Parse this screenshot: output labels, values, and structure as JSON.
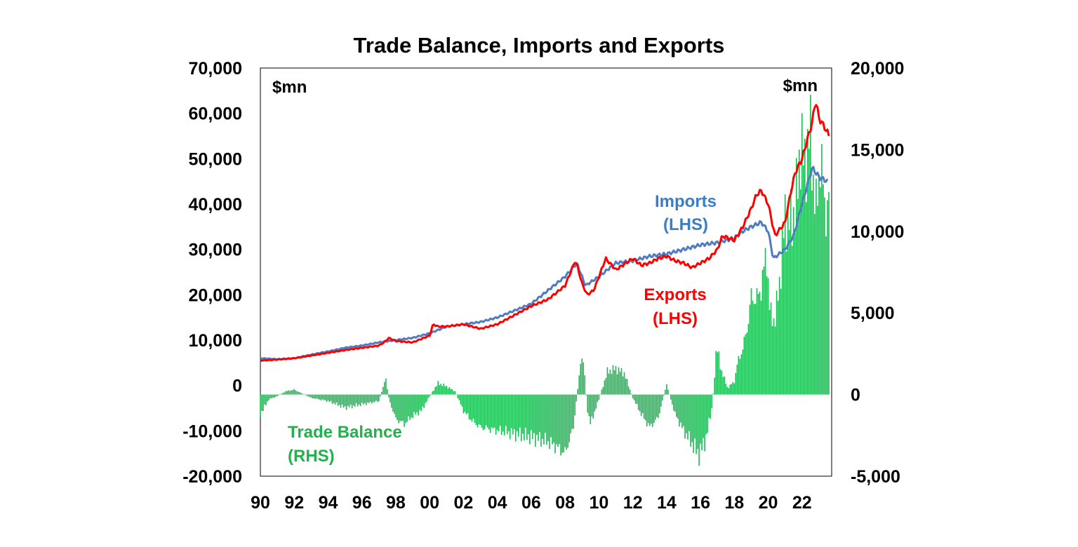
{
  "chart_data": {
    "type": "line+bar",
    "title": "Trade Balance, Imports and Exports",
    "unit_left": "$mn",
    "unit_right": "$mn",
    "x_ticks": [
      "90",
      "92",
      "94",
      "96",
      "98",
      "00",
      "02",
      "04",
      "06",
      "08",
      "10",
      "12",
      "14",
      "16",
      "18",
      "20",
      "22"
    ],
    "x_range": [
      1990,
      2023.75
    ],
    "y_left": {
      "min": -20000,
      "max": 70000,
      "ticks": [
        "-20,000",
        "-10,000",
        "0",
        "10,000",
        "20,000",
        "30,000",
        "40,000",
        "50,000",
        "60,000",
        "70,000"
      ]
    },
    "y_right": {
      "min": -5000,
      "max": 20000,
      "ticks": [
        "-5,000",
        "0",
        "5,000",
        "10,000",
        "15,000",
        "20,000"
      ]
    },
    "grid": false,
    "colors": {
      "imports": "#4f7cc0",
      "exports": "#ff0000",
      "trade_balance": "#1db954",
      "imports_label": "#3a7dc9",
      "exports_label": "#ff0000",
      "balance_label": "#22b14c"
    },
    "series": [
      {
        "name": "Imports (LHS)",
        "label_line1": "Imports",
        "label_line2": "(LHS)",
        "axis": "left",
        "kind": "line",
        "x": [
          1990,
          1991,
          1992,
          1993,
          1994,
          1995,
          1996,
          1997,
          1998,
          1999,
          2000,
          2001,
          2002,
          2003,
          2004,
          2005,
          2006,
          2007,
          2008,
          2008.7,
          2009.2,
          2010,
          2011,
          2012,
          2013,
          2014,
          2015,
          2016,
          2017,
          2018,
          2018.5,
          2019,
          2019.6,
          2020,
          2020.3,
          2021,
          2021.5,
          2022,
          2022.6,
          2023,
          2023.5
        ],
        "y": [
          6000,
          5800,
          6000,
          6800,
          7500,
          8300,
          8800,
          9500,
          10000,
          10500,
          11500,
          13000,
          13500,
          14000,
          15000,
          16500,
          18000,
          21000,
          24000,
          27000,
          22000,
          24000,
          27000,
          27500,
          28500,
          29000,
          30000,
          31000,
          31500,
          32500,
          34000,
          35000,
          36000,
          34000,
          28000,
          30000,
          33000,
          40000,
          48000,
          46000,
          45000
        ]
      },
      {
        "name": "Exports (LHS)",
        "label_line1": "Exports",
        "label_line2": "(LHS)",
        "axis": "left",
        "kind": "line",
        "x": [
          1990,
          1991,
          1992,
          1993,
          1994,
          1995,
          1996,
          1997,
          1997.3,
          1997.6,
          1998,
          1999,
          2000,
          2000.2,
          2000.5,
          2001,
          2002,
          2003,
          2004,
          2005,
          2006,
          2007,
          2008,
          2008.6,
          2008.75,
          2009,
          2009.3,
          2009.7,
          2010,
          2010.4,
          2011,
          2011.6,
          2012,
          2012.5,
          2013,
          2013.5,
          2014,
          2014.5,
          2015,
          2015.5,
          2016,
          2016.5,
          2017,
          2017.3,
          2018,
          2018.5,
          2019,
          2019.3,
          2019.6,
          2020,
          2020.4,
          2021,
          2021.3,
          2021.6,
          2022,
          2022.6,
          2022.8,
          2023,
          2023.4,
          2023.6
        ],
        "y": [
          5500,
          5700,
          6000,
          6600,
          7200,
          7800,
          8300,
          8800,
          9500,
          10500,
          9800,
          9500,
          11000,
          13500,
          13000,
          13000,
          13500,
          12500,
          13500,
          15500,
          17500,
          19000,
          22000,
          27500,
          26000,
          22500,
          20000,
          21000,
          24000,
          28000,
          25500,
          27000,
          28000,
          26500,
          27000,
          28000,
          28500,
          27500,
          27000,
          26000,
          27000,
          28000,
          30000,
          33000,
          32000,
          35000,
          39000,
          42000,
          43000,
          40000,
          33000,
          36000,
          42000,
          47000,
          50000,
          58000,
          63000,
          59000,
          56500,
          55000
        ]
      },
      {
        "name": "Trade Balance (RHS)",
        "label_line1": "Trade Balance",
        "label_line2": "(RHS)",
        "axis": "right",
        "kind": "bar",
        "x": [
          1990,
          1990.5,
          1991,
          1991.5,
          1992,
          1993,
          1994,
          1995,
          1996,
          1997,
          1997.4,
          1997.6,
          1998,
          1998.5,
          1999,
          1999.5,
          2000,
          2000.5,
          2001,
          2001.5,
          2002,
          2002.5,
          2003,
          2004,
          2005,
          2006,
          2007,
          2007.5,
          2008,
          2008.5,
          2008.9,
          2009.1,
          2009.3,
          2009.5,
          2010,
          2010.5,
          2011,
          2011.5,
          2012,
          2012.5,
          2013,
          2013.5,
          2014,
          2014.5,
          2015,
          2015.5,
          2015.9,
          2016.3,
          2016.7,
          2016.95,
          2017.2,
          2017.6,
          2018,
          2018.2,
          2018.5,
          2018.8,
          2019,
          2019.3,
          2019.6,
          2019.9,
          2020.1,
          2020.4,
          2020.7,
          2021,
          2021.3,
          2021.6,
          2021.9,
          2022.2,
          2022.5,
          2022.8,
          2023.1,
          2023.4,
          2023.6
        ],
        "y": [
          -1200,
          -300,
          -100,
          200,
          300,
          -200,
          -400,
          -800,
          -600,
          -400,
          1000,
          -300,
          -1500,
          -1800,
          -1300,
          -1000,
          -100,
          700,
          500,
          200,
          -1000,
          -1600,
          -2000,
          -2200,
          -2400,
          -2600,
          -2900,
          -3200,
          -3600,
          -2000,
          1800,
          2200,
          -800,
          -1800,
          -300,
          1400,
          1600,
          1300,
          -200,
          -1200,
          -2000,
          -1400,
          600,
          -1200,
          -2200,
          -3000,
          -3700,
          -2800,
          -700,
          3000,
          1600,
          400,
          800,
          2000,
          2800,
          4300,
          6000,
          5800,
          6600,
          8800,
          5000,
          4500,
          7200,
          11000,
          10600,
          11200,
          15200,
          14200,
          16000,
          11000,
          14500,
          11000,
          12000
        ]
      }
    ]
  }
}
